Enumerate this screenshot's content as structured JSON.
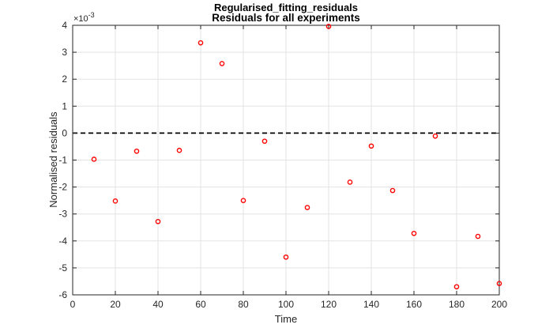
{
  "chart_data": {
    "type": "scatter",
    "suptitle": "Regularised_fitting_residuals",
    "title": "Residuals for all experiments",
    "xlabel": "Time",
    "ylabel": "Normalised residuals",
    "y_exponent": {
      "base": "×10",
      "power": "-3"
    },
    "xlim": [
      0,
      200
    ],
    "ylim": [
      -6,
      4
    ],
    "x_ticks": [
      0,
      20,
      40,
      60,
      80,
      100,
      120,
      140,
      160,
      180,
      200
    ],
    "y_ticks": [
      -6,
      -5,
      -4,
      -3,
      -2,
      -1,
      0,
      1,
      2,
      3,
      4
    ],
    "grid": true,
    "reference_line": {
      "y": 0,
      "style": "dashed",
      "color": "#000000"
    },
    "marker_color": "#ff0000",
    "marker": "circle",
    "x": [
      10,
      20,
      30,
      40,
      50,
      60,
      70,
      80,
      90,
      100,
      110,
      120,
      130,
      140,
      150,
      160,
      170,
      180,
      190,
      200
    ],
    "y": [
      -0.97,
      -2.52,
      -0.67,
      -3.28,
      -0.64,
      3.35,
      2.58,
      -2.5,
      -0.3,
      -4.6,
      -2.76,
      3.96,
      -1.82,
      -0.48,
      -2.13,
      -3.72,
      -0.11,
      -5.7,
      -3.83,
      -5.58
    ]
  }
}
